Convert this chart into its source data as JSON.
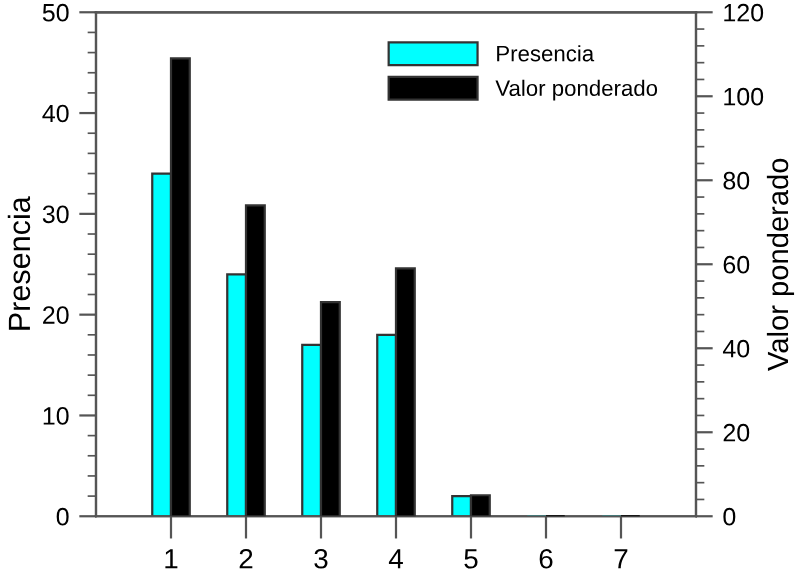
{
  "chart_data": {
    "type": "bar",
    "categories": [
      "1",
      "2",
      "3",
      "4",
      "5",
      "6",
      "7"
    ],
    "ylabel": "Presencia",
    "y2label": "Valor ponderado",
    "ylim": [
      0,
      50
    ],
    "yticks": [
      0,
      10,
      20,
      30,
      40,
      50
    ],
    "y2lim": [
      0,
      120
    ],
    "y2ticks": [
      0,
      20,
      40,
      60,
      80,
      100,
      120
    ],
    "series": [
      {
        "name": "Presencia",
        "color": "#00ffff",
        "values": [
          34,
          24,
          17,
          18,
          2,
          0,
          0
        ]
      },
      {
        "name": "Valor ponderado",
        "color": "#000000",
        "axis": "y2",
        "values": [
          109,
          74,
          51,
          59,
          5,
          0,
          0
        ]
      }
    ],
    "legend": "top right",
    "grid": false
  }
}
